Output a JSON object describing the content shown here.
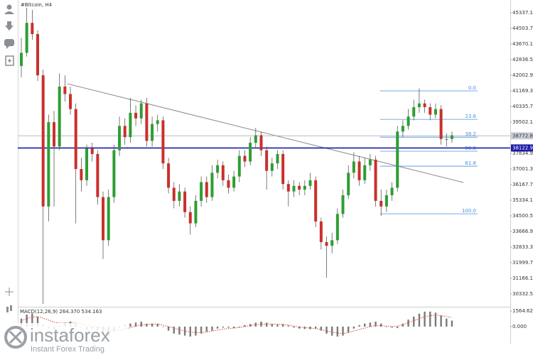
{
  "chart_data": {
    "type": "candlestick",
    "title": "#Bitcoin, H4",
    "up_color": "#2e9e33",
    "down_color": "#c9302c",
    "open": [
      42500,
      43200,
      44800,
      44200,
      42000,
      35000,
      39500,
      38200,
      41400,
      41000,
      40200,
      37000,
      36400,
      38100,
      37800,
      35500,
      33200,
      35500,
      38000,
      39300,
      38700,
      40000,
      39700,
      40500,
      38500,
      39400,
      39600,
      37300,
      36000,
      35300,
      35800,
      34700,
      34100,
      35300,
      36300,
      35500,
      36800,
      37200,
      36400,
      36000,
      36600,
      37700,
      37400,
      38400,
      38800,
      38000,
      36900,
      37300,
      37800,
      36200,
      35800,
      36100,
      35900,
      36100,
      36400,
      34200,
      33100,
      32900,
      33200,
      34600,
      35600,
      36800,
      37400,
      36400,
      37200,
      37500,
      35300,
      35000,
      35600,
      36000,
      39000,
      39300,
      39800,
      40300,
      40500,
      40300,
      39900,
      40200,
      38600,
      38600
    ],
    "high": [
      44000,
      45600,
      45500,
      44400,
      42300,
      39900,
      40100,
      42100,
      42000,
      41400,
      40500,
      37600,
      38300,
      38400,
      38000,
      35800,
      35900,
      38300,
      39800,
      39700,
      40800,
      40400,
      40700,
      40800,
      39800,
      39900,
      39800,
      37600,
      36300,
      36200,
      36000,
      35000,
      35600,
      36600,
      36600,
      37200,
      37500,
      37400,
      36700,
      36900,
      38000,
      38000,
      38700,
      39200,
      39000,
      38200,
      37600,
      38000,
      38000,
      36400,
      36400,
      36300,
      36400,
      36800,
      36600,
      34400,
      33400,
      33600,
      34900,
      35900,
      37200,
      37900,
      37700,
      37600,
      37800,
      37700,
      35900,
      35900,
      36300,
      39300,
      39600,
      40200,
      40700,
      41300,
      40700,
      40500,
      40500,
      40400,
      38900,
      39000
    ],
    "low": [
      41900,
      43000,
      43900,
      41700,
      29800,
      34200,
      35000,
      38000,
      40600,
      39900,
      34100,
      35800,
      36100,
      37400,
      35100,
      32200,
      32900,
      35200,
      37700,
      38300,
      38400,
      39300,
      39400,
      38200,
      38200,
      39000,
      37000,
      35700,
      34900,
      35000,
      34400,
      33500,
      33900,
      35000,
      35200,
      35300,
      36500,
      36100,
      35700,
      35800,
      36300,
      37100,
      37200,
      38100,
      37700,
      35900,
      36600,
      37000,
      35900,
      35000,
      35500,
      35600,
      35600,
      35900,
      33900,
      32700,
      31200,
      32500,
      33000,
      34400,
      35400,
      36500,
      36100,
      36200,
      36900,
      35000,
      34500,
      34700,
      35300,
      35800,
      38700,
      39100,
      39600,
      40000,
      40000,
      39600,
      39700,
      38300,
      38200,
      38400
    ],
    "close": [
      43200,
      44800,
      44200,
      42000,
      35000,
      39500,
      38200,
      41400,
      41000,
      40200,
      37000,
      36400,
      38100,
      37800,
      35500,
      33200,
      35500,
      38000,
      39300,
      38700,
      40000,
      39700,
      40500,
      38500,
      39400,
      39600,
      37300,
      36000,
      35300,
      35800,
      34700,
      34100,
      35300,
      36300,
      35500,
      36800,
      37200,
      36400,
      36000,
      36600,
      37700,
      37400,
      38400,
      38800,
      38000,
      36900,
      37300,
      37800,
      36200,
      35800,
      36100,
      35900,
      36100,
      36400,
      34200,
      33100,
      32900,
      33200,
      34600,
      35600,
      36800,
      37400,
      36400,
      37200,
      37500,
      35300,
      35000,
      35600,
      36000,
      39000,
      39300,
      39800,
      40300,
      40500,
      40300,
      39900,
      40200,
      38600,
      38600,
      38800
    ],
    "ylim": [
      29650,
      46020
    ],
    "yticks": [
      {
        "value": 45337.1,
        "label": "45337.10"
      },
      {
        "value": 44503.7,
        "label": "44503.70"
      },
      {
        "value": 43670.1,
        "label": "43670.10"
      },
      {
        "value": 42836.5,
        "label": "42836.50"
      },
      {
        "value": 42002.9,
        "label": "42002.90"
      },
      {
        "value": 41169.3,
        "label": "41169.30"
      },
      {
        "value": 40335.7,
        "label": "40335.70"
      },
      {
        "value": 39502.1,
        "label": "39502.10"
      },
      {
        "value": 37834.9,
        "label": "37834.90"
      },
      {
        "value": 37001.3,
        "label": "37001.30"
      },
      {
        "value": 36167.7,
        "label": "36167.70"
      },
      {
        "value": 35334.1,
        "label": "35334.10"
      },
      {
        "value": 34500.5,
        "label": "34500.50"
      },
      {
        "value": 33666.9,
        "label": "33666.90"
      },
      {
        "value": 32833.3,
        "label": "32833.30"
      },
      {
        "value": 31999.7,
        "label": "31999.70"
      },
      {
        "value": 31166.1,
        "label": "31166.10"
      },
      {
        "value": 30332.5,
        "label": "30332.50"
      }
    ],
    "price_lines": [
      {
        "value": 38772.81,
        "label": "38772.81",
        "color": "#9aa3ad"
      },
      {
        "value": 38122.96,
        "label": "38122.96",
        "color": "#1a1aa6"
      }
    ],
    "fib": {
      "color": "#4a8fdf",
      "labels": [
        "0.0",
        "23.6",
        "38.2",
        "50.0",
        "61.8",
        "100.0"
      ],
      "prices": [
        41170,
        39650,
        38700,
        37950,
        37150,
        34610
      ]
    },
    "macd": {
      "title": "MACD(12,26,9) 264.370 534.163",
      "ylim": [
        -1565,
        1707
      ],
      "yticks": [
        {
          "value": 1564.621,
          "label": "1564.621"
        },
        {
          "value": 0,
          "label": "0.000"
        }
      ],
      "histogram": [
        800,
        1200,
        1300,
        1000,
        200,
        -200,
        -300,
        100,
        400,
        500,
        300,
        -100,
        -300,
        -200,
        -400,
        -800,
        -900,
        -500,
        -100,
        200,
        300,
        400,
        500,
        300,
        300,
        300,
        0,
        -400,
        -700,
        -800,
        -900,
        -1000,
        -900,
        -700,
        -500,
        -400,
        -200,
        -100,
        -100,
        -150,
        -50,
        150,
        250,
        400,
        500,
        400,
        250,
        200,
        250,
        100,
        -100,
        -200,
        -250,
        -250,
        -200,
        -400,
        -700,
        -900,
        -1000,
        -900,
        -600,
        -200,
        150,
        300,
        400,
        500,
        300,
        0,
        -100,
        -150,
        300,
        700,
        1000,
        1300,
        1500,
        1500,
        1400,
        1100,
        800,
        600
      ],
      "signal": [
        600,
        800,
        950,
        1000,
        850,
        650,
        450,
        350,
        350,
        380,
        350,
        250,
        150,
        50,
        -50,
        -200,
        -350,
        -400,
        -350,
        -250,
        -100,
        50,
        150,
        200,
        250,
        250,
        150,
        0,
        -150,
        -300,
        -450,
        -550,
        -600,
        -600,
        -550,
        -450,
        -350,
        -250,
        -200,
        -150,
        -80,
        0,
        100,
        200,
        250,
        250,
        250,
        250,
        200,
        150,
        50,
        -50,
        -100,
        -150,
        -200,
        -300,
        -450,
        -550,
        -650,
        -700,
        -600,
        -450,
        -300,
        -150,
        0,
        100,
        100,
        50,
        0,
        50,
        200,
        400,
        600,
        800,
        1000,
        1100,
        1150,
        1100,
        1000,
        900
      ]
    }
  },
  "branding": {
    "name": "instaforex",
    "tagline": "Instant Forex Trading"
  }
}
